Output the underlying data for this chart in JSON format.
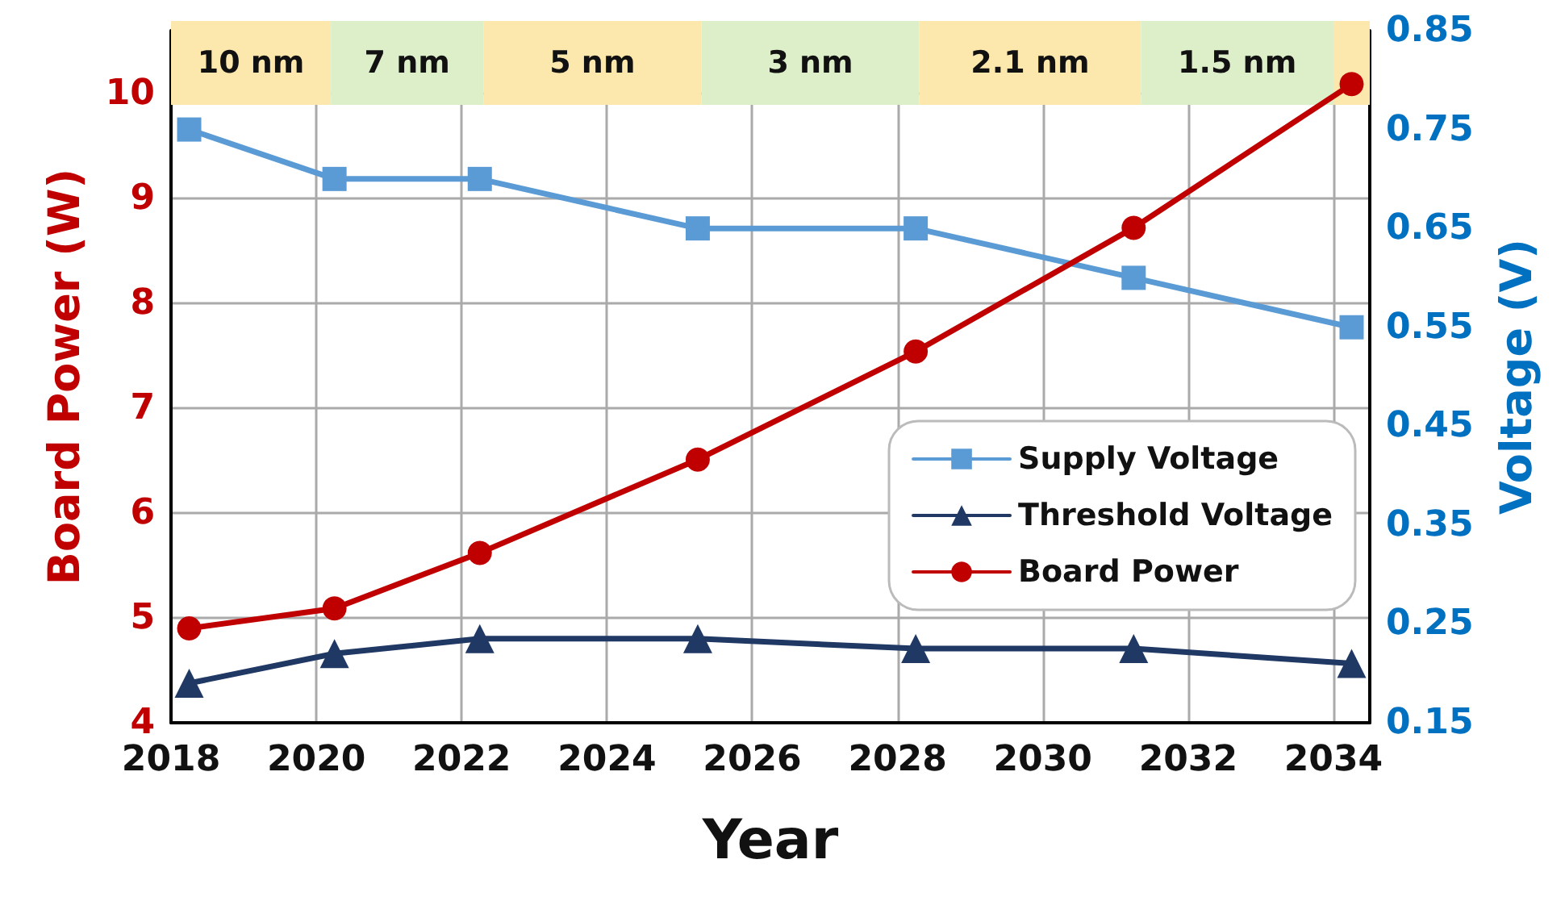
{
  "chart_data": {
    "type": "line",
    "xlabel": "Year",
    "ylabel": "Board Power (W)",
    "y2label": "Voltage (V)",
    "xlim": [
      2018,
      2034.5
    ],
    "xticks": [
      2018,
      2020,
      2022,
      2024,
      2026,
      2028,
      2030,
      2032,
      2034
    ],
    "ylim": [
      4,
      10.6
    ],
    "yticks": [
      4,
      5,
      6,
      7,
      8,
      9,
      10
    ],
    "y2lim": [
      0.15,
      0.85
    ],
    "y2ticks": [
      0.15,
      0.25,
      0.35,
      0.45,
      0.55,
      0.65,
      0.75,
      0.85
    ],
    "x": [
      2018.25,
      2020.25,
      2022.25,
      2025.25,
      2028.25,
      2031.25,
      2034.25
    ],
    "series": [
      {
        "name": "Supply Voltage",
        "color": "#5b9bd5",
        "marker": "square",
        "axis": "y2",
        "values": [
          0.75,
          0.7,
          0.7,
          0.65,
          0.65,
          0.6,
          0.55
        ]
      },
      {
        "name": "Threshold Voltage",
        "color": "#203864",
        "marker": "triangle",
        "axis": "y2",
        "values": [
          0.19,
          0.22,
          0.235,
          0.235,
          0.225,
          0.225,
          0.21
        ]
      },
      {
        "name": "Board Power",
        "color": "#c00000",
        "marker": "circle",
        "values": [
          4.9,
          5.09,
          5.62,
          6.51,
          7.54,
          8.72,
          10.09
        ]
      }
    ],
    "bands": [
      {
        "axis": "x",
        "from": 2018,
        "to": 2020.2,
        "label": "10 nm",
        "color": "#fce7ad"
      },
      {
        "axis": "x",
        "from": 2020.2,
        "to": 2022.3,
        "label": "7 nm",
        "color": "#dcefc9"
      },
      {
        "axis": "x",
        "from": 2022.3,
        "to": 2025.3,
        "label": "5 nm",
        "color": "#fce7ad"
      },
      {
        "axis": "x",
        "from": 2025.3,
        "to": 2028.3,
        "label": "3 nm",
        "color": "#dcefc9"
      },
      {
        "axis": "x",
        "from": 2028.3,
        "to": 2031.35,
        "label": "2.1 nm",
        "color": "#fce7ad"
      },
      {
        "axis": "x",
        "from": 2031.35,
        "to": 2034,
        "label": "1.5 nm",
        "color": "#dcefc9"
      },
      {
        "axis": "x",
        "from": 2034,
        "to": 2034.5,
        "color": "#fce7ad"
      }
    ],
    "grid": true,
    "legend": "bottom right",
    "line_style": "solid"
  }
}
